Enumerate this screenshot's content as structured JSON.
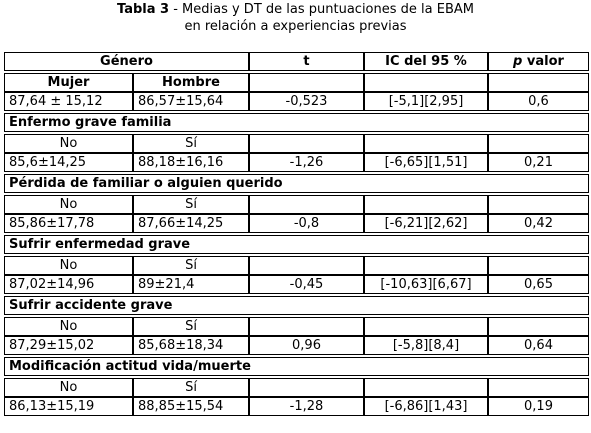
{
  "caption": {
    "label": "Tabla 3",
    "text_line1": " - Medias y DT de las puntuaciones de la EBAM",
    "text_line2": "en relación a experiencias previas"
  },
  "header": {
    "genero": "Género",
    "t": "t",
    "ic": "IC del 95 %",
    "p_italic": "p",
    "p_rest": " valor",
    "mujer": "Mujer",
    "hombre": "Hombre"
  },
  "row_genero": {
    "a": "87,64 ± 15,12",
    "b": "86,57±15,64",
    "t": "-0,523",
    "ic": "[-5,1][2,95]",
    "p": "0,6"
  },
  "sections": [
    {
      "title": "Enfermo grave familia",
      "no": "No",
      "si": "Sí",
      "a": "85,6±14,25",
      "b": "88,18±16,16",
      "t": "-1,26",
      "ic": "[-6,65][1,51]",
      "p": "0,21"
    },
    {
      "title": "Pérdida de familiar o alguien querido",
      "no": "No",
      "si": "Sí",
      "a": "85,86±17,78",
      "b": "87,66±14,25",
      "t": "-0,8",
      "ic": "[-6,21][2,62]",
      "p": "0,42"
    },
    {
      "title": "Sufrir enfermedad grave",
      "no": "No",
      "si": "Sí",
      "a": "87,02±14,96",
      "b": "89±21,4",
      "t": "-0,45",
      "ic": "[-10,63][6,67]",
      "p": "0,65"
    },
    {
      "title": "Sufrir accidente grave",
      "no": "No",
      "si": "Sí",
      "a": "87,29±15,02",
      "b": "85,68±18,34",
      "t": "0,96",
      "ic": "[-5,8][8,4]",
      "p": "0,64"
    },
    {
      "title": "Modificación actitud vida/muerte",
      "no": "No",
      "si": "Sí",
      "a": "86,13±15,19",
      "b": "88,85±15,54",
      "t": "-1,28",
      "ic": "[-6,86][1,43]",
      "p": "0,19"
    }
  ]
}
